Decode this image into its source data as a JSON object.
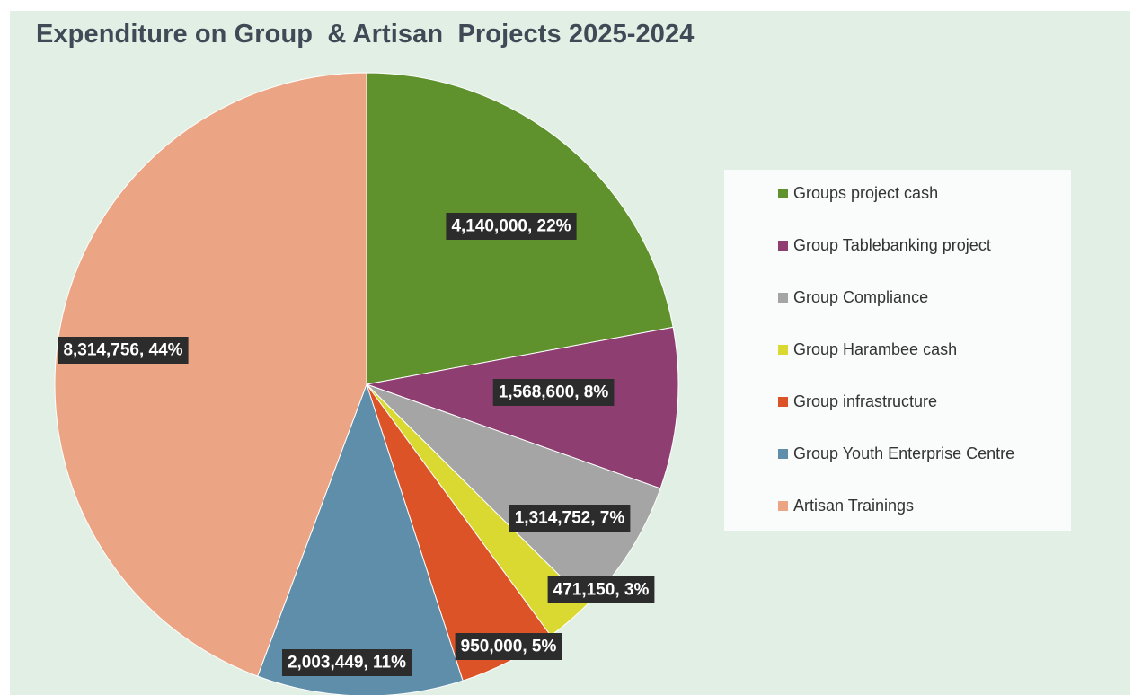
{
  "chart_data": {
    "type": "pie",
    "title": "Expenditure on Group  & Artisan  Projects 2025-2024",
    "start_angle_deg": 0,
    "direction": "clockwise",
    "legend_position": "right",
    "slices": [
      {
        "label": "Groups project cash",
        "value": 4140000,
        "data_label": "4,140,000, 22%",
        "color": "#5f922c"
      },
      {
        "label": "Group Tablebanking project",
        "value": 1568600,
        "data_label": "1,568,600, 8%",
        "color": "#8e3e70"
      },
      {
        "label": "Group Compliance",
        "value": 1314752,
        "data_label": "1,314,752, 7%",
        "color": "#a5a5a5"
      },
      {
        "label": "Group Harambee cash",
        "value": 471150,
        "data_label": "471,150, 3%",
        "color": "#dad932"
      },
      {
        "label": "Group infrastructure",
        "value": 950000,
        "data_label": "950,000, 5%",
        "color": "#dc5328"
      },
      {
        "label": "Group Youth Enterprise Centre",
        "value": 2003449,
        "data_label": "2,003,449, 11%",
        "color": "#5f8eab"
      },
      {
        "label": "Artisan Trainings",
        "value": 8314756,
        "data_label": "8,314,756, 44%",
        "color": "#eba584"
      }
    ]
  }
}
